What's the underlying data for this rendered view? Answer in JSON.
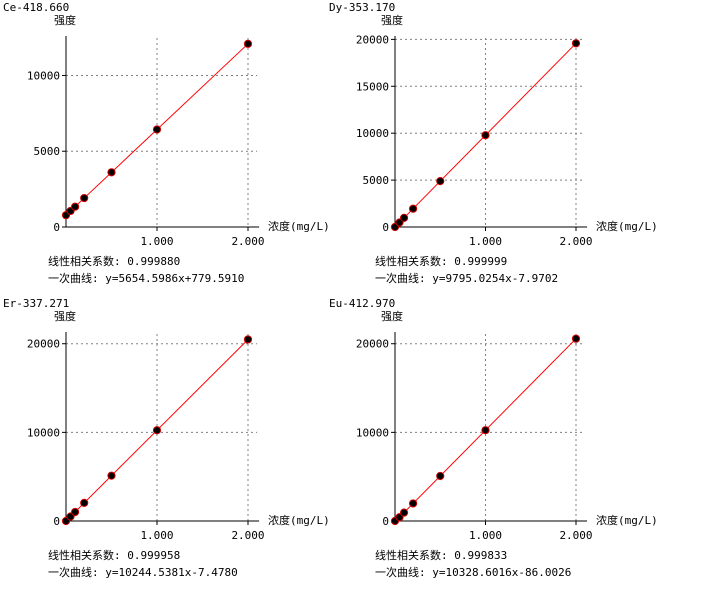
{
  "labels": {
    "ylabel": "强度",
    "xlabel": "浓度(mg/L)",
    "corr_prefix": "线性相关系数: ",
    "curve_prefix": "一次曲线: "
  },
  "colors": {
    "line": "#ff0000",
    "point": "#000000",
    "point_edge": "#cc0000",
    "grid": "#808080"
  },
  "chart_data": [
    {
      "type": "scatter",
      "title": "Ce-418.660",
      "xlabel": "浓度(mg/L)",
      "ylabel": "强度",
      "xlim": [
        0,
        2.1
      ],
      "ylim": [
        0,
        13000
      ],
      "xticks": [
        1,
        2
      ],
      "xtick_labels": [
        "1.000",
        "2.000"
      ],
      "yticks": [
        0,
        5000,
        10000
      ],
      "ytick_labels": [
        "0",
        "5000",
        "10000"
      ],
      "grid": true,
      "x": [
        0,
        0.05,
        0.1,
        0.2,
        0.5,
        1.0,
        2.0
      ],
      "y": [
        780,
        1060,
        1340,
        1910,
        3610,
        6434,
        12089
      ],
      "fit": {
        "slope": 5654.5986,
        "intercept": 779.591
      },
      "correlation": "0.999880",
      "equation": "y=5654.5986x+779.5910"
    },
    {
      "type": "scatter",
      "title": "Dy-353.170",
      "xlabel": "浓度(mg/L)",
      "ylabel": "强度",
      "xlim": [
        0,
        2.1
      ],
      "ylim": [
        0,
        21000
      ],
      "xticks": [
        1,
        2
      ],
      "xtick_labels": [
        "1.000",
        "2.000"
      ],
      "yticks": [
        0,
        5000,
        10000,
        15000,
        20000
      ],
      "ytick_labels": [
        "0",
        "5000",
        "10000",
        "15000",
        "20000"
      ],
      "grid": true,
      "x": [
        0,
        0.05,
        0.1,
        0.2,
        0.5,
        1.0,
        2.0
      ],
      "y": [
        0,
        482,
        972,
        1951,
        4890,
        9787,
        19582
      ],
      "fit": {
        "slope": 9795.0254,
        "intercept": -7.9702
      },
      "correlation": "0.999999",
      "equation": "y=9795.0254x-7.9702"
    },
    {
      "type": "scatter",
      "title": "Er-337.271",
      "xlabel": "浓度(mg/L)",
      "ylabel": "强度",
      "xlim": [
        0,
        2.1
      ],
      "ylim": [
        0,
        22000
      ],
      "xticks": [
        1,
        2
      ],
      "xtick_labels": [
        "1.000",
        "2.000"
      ],
      "yticks": [
        0,
        10000,
        20000
      ],
      "ytick_labels": [
        "0",
        "10000",
        "20000"
      ],
      "grid": true,
      "x": [
        0,
        0.05,
        0.1,
        0.2,
        0.5,
        1.0,
        2.0
      ],
      "y": [
        0,
        505,
        1017,
        2041,
        5115,
        10237,
        20482
      ],
      "fit": {
        "slope": 10244.5381,
        "intercept": -7.478
      },
      "correlation": "0.999958",
      "equation": "y=10244.5381x-7.4780"
    },
    {
      "type": "scatter",
      "title": "Eu-412.970",
      "xlabel": "浓度(mg/L)",
      "ylabel": "强度",
      "xlim": [
        0,
        2.1
      ],
      "ylim": [
        0,
        22000
      ],
      "xticks": [
        1,
        2
      ],
      "xtick_labels": [
        "1.000",
        "2.000"
      ],
      "yticks": [
        0,
        10000,
        20000
      ],
      "ytick_labels": [
        "0",
        "10000",
        "20000"
      ],
      "grid": true,
      "x": [
        0,
        0.05,
        0.1,
        0.2,
        0.5,
        1.0,
        2.0
      ],
      "y": [
        0,
        430,
        947,
        1980,
        5078,
        10243,
        20571
      ],
      "fit": {
        "slope": 10328.6016,
        "intercept": -86.0026
      },
      "correlation": "0.999833",
      "equation": "y=10328.6016x-86.0026"
    }
  ]
}
